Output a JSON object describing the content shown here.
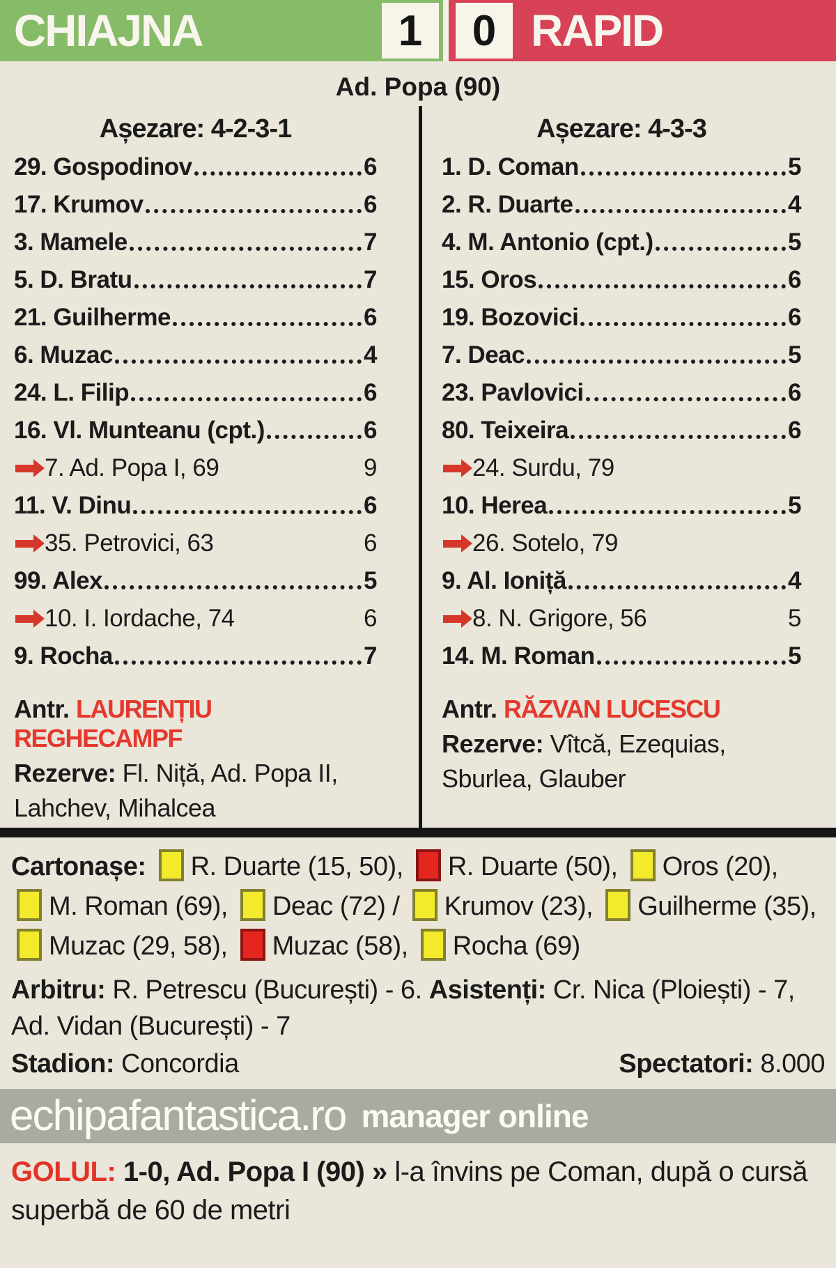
{
  "header": {
    "home_team": "CHIAJNA",
    "home_score": "1",
    "away_score": "0",
    "away_team": "RAPID"
  },
  "goal_scorers": "Ad. Popa (90)",
  "teams": [
    {
      "formation_label": "Așezare: 4-2-3-1",
      "players": [
        {
          "label": "29. Gospodinov",
          "rating": "6",
          "sub": false
        },
        {
          "label": "17. Krumov",
          "rating": "6",
          "sub": false
        },
        {
          "label": "3. Mamele",
          "rating": "7",
          "sub": false
        },
        {
          "label": "5. D. Bratu",
          "rating": "7",
          "sub": false
        },
        {
          "label": "21. Guilherme",
          "rating": "6",
          "sub": false
        },
        {
          "label": "6. Muzac",
          "rating": "4",
          "sub": false
        },
        {
          "label": "24. L. Filip",
          "rating": "6",
          "sub": false
        },
        {
          "label": "16. Vl. Munteanu (cpt.)",
          "rating": "6",
          "sub": false
        },
        {
          "label": "7. Ad. Popa I, 69",
          "rating": "9",
          "sub": true
        },
        {
          "label": "11. V. Dinu",
          "rating": "6",
          "sub": false
        },
        {
          "label": "35. Petrovici, 63",
          "rating": "6",
          "sub": true
        },
        {
          "label": "99. Alex",
          "rating": "5",
          "sub": false
        },
        {
          "label": "10. I. Iordache, 74",
          "rating": "6",
          "sub": true
        },
        {
          "label": "9. Rocha",
          "rating": "7",
          "sub": false
        }
      ],
      "coach_label": "Antr.",
      "coach": "LAURENȚIU REGHECAMPF",
      "reserves_label": "Rezerve:",
      "reserves": "Fl. Niță, Ad. Popa II, Lahchev, Mihalcea"
    },
    {
      "formation_label": "Așezare: 4-3-3",
      "players": [
        {
          "label": "1. D. Coman",
          "rating": "5",
          "sub": false
        },
        {
          "label": "2. R. Duarte",
          "rating": "4",
          "sub": false
        },
        {
          "label": "4. M. Antonio (cpt.)",
          "rating": "5",
          "sub": false
        },
        {
          "label": "15. Oros",
          "rating": "6",
          "sub": false
        },
        {
          "label": "19. Bozovici",
          "rating": "6",
          "sub": false
        },
        {
          "label": "7. Deac",
          "rating": "5",
          "sub": false
        },
        {
          "label": "23. Pavlovici",
          "rating": "6",
          "sub": false
        },
        {
          "label": "80. Teixeira",
          "rating": "6",
          "sub": false
        },
        {
          "label": "24. Surdu, 79",
          "rating": "",
          "sub": true
        },
        {
          "label": "10. Herea",
          "rating": "5",
          "sub": false
        },
        {
          "label": "26. Sotelo, 79",
          "rating": "",
          "sub": true
        },
        {
          "label": "9. Al. Ioniță",
          "rating": "4",
          "sub": false
        },
        {
          "label": "8. N. Grigore, 56",
          "rating": "5",
          "sub": true
        },
        {
          "label": "14. M. Roman",
          "rating": "5",
          "sub": false
        }
      ],
      "coach_label": "Antr.",
      "coach": "RĂZVAN LUCESCU",
      "reserves_label": "Rezerve:",
      "reserves": "Vîtcă, Ezequias, Sburlea, Glauber"
    }
  ],
  "cards": {
    "label": "Cartonașe:",
    "items": [
      {
        "card": "yellow",
        "text": "R. Duarte (15, 50),"
      },
      {
        "card": "red",
        "text": "R. Duarte (50),"
      },
      {
        "card": "yellow",
        "text": "Oros (20),"
      },
      {
        "card": "yellow",
        "text": "M. Roman (69),"
      },
      {
        "card": "yellow",
        "text": "Deac (72) /"
      },
      {
        "card": "yellow",
        "text": "Krumov (23),"
      },
      {
        "card": "yellow",
        "text": "Guilherme (35),"
      },
      {
        "card": "yellow",
        "text": "Muzac (29, 58),"
      },
      {
        "card": "red",
        "text": "Muzac (58),"
      },
      {
        "card": "yellow",
        "text": "Rocha (69)"
      }
    ]
  },
  "officials": {
    "referee_label": "Arbitru:",
    "referee": "R. Petrescu (București) - 6.",
    "assistants_label": "Asistenți:",
    "assistants": "Cr. Nica (Ploiești) - 7, Ad. Vidan (București) - 7",
    "stadium_label": "Stadion:",
    "stadium": "Concordia",
    "attendance_label": "Spectatori:",
    "attendance": "8.000"
  },
  "ad_bar": {
    "site": "echipafantastica.ro",
    "tagline": "manager online"
  },
  "goal_note": {
    "label": "GOLUL:",
    "bold": "1-0, Ad. Popa I (90)",
    "separator": "»",
    "text": "l-a învins pe Coman, după o cursă superbă de 60 de metri"
  },
  "icons": {
    "substitution_arrow": "red-right-arrow",
    "yellow_card": "yellow-square",
    "red_card": "red-square"
  },
  "colors": {
    "home_bar": "#86bb68",
    "away_bar": "#d84257",
    "background": "#eae6da",
    "yellow_card": "#f3ea2c",
    "red_card": "#e5261f",
    "accent_red": "#e4392e"
  }
}
